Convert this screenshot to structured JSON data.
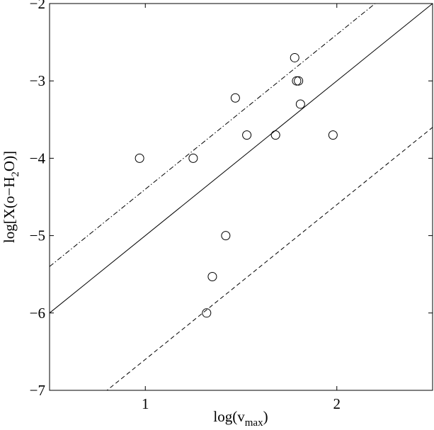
{
  "chart_data": {
    "type": "scatter",
    "title": "",
    "xlabel": {
      "base": "log(v",
      "sub": "max",
      "close": ")"
    },
    "ylabel": {
      "pre": "log[X(o−H",
      "sub": "2",
      "post": "O)]"
    },
    "xlim": [
      0.5,
      2.5
    ],
    "ylim": [
      -7,
      -2
    ],
    "xticks": [
      {
        "value": 1,
        "label": "1"
      },
      {
        "value": 2,
        "label": "2"
      }
    ],
    "yticks": [
      {
        "value": -2,
        "label": "−2"
      },
      {
        "value": -3,
        "label": "−3"
      },
      {
        "value": -4,
        "label": "−4"
      },
      {
        "value": -5,
        "label": "−5"
      },
      {
        "value": -6,
        "label": "−6"
      },
      {
        "value": -7,
        "label": "−7"
      }
    ],
    "grid": false,
    "points": [
      {
        "x": 0.97,
        "y": -4.0
      },
      {
        "x": 1.25,
        "y": -4.0
      },
      {
        "x": 1.47,
        "y": -3.22
      },
      {
        "x": 1.53,
        "y": -3.7
      },
      {
        "x": 1.68,
        "y": -3.7
      },
      {
        "x": 1.78,
        "y": -2.7
      },
      {
        "x": 1.79,
        "y": -3.0
      },
      {
        "x": 1.8,
        "y": -3.0
      },
      {
        "x": 1.81,
        "y": -3.3
      },
      {
        "x": 1.98,
        "y": -3.7
      },
      {
        "x": 1.42,
        "y": -5.0
      },
      {
        "x": 1.35,
        "y": -5.53
      },
      {
        "x": 1.32,
        "y": -6.0
      }
    ],
    "lines": [
      {
        "style": "solid",
        "x1": 0.5,
        "y1": -6.0,
        "x2": 2.5,
        "y2": -2.0
      },
      {
        "style": "dashdot",
        "x1": 0.5,
        "y1": -5.4,
        "x2": 2.5,
        "y2": -1.4
      },
      {
        "style": "dashed",
        "x1": 0.5,
        "y1": -7.6,
        "x2": 2.5,
        "y2": -3.6
      }
    ]
  }
}
